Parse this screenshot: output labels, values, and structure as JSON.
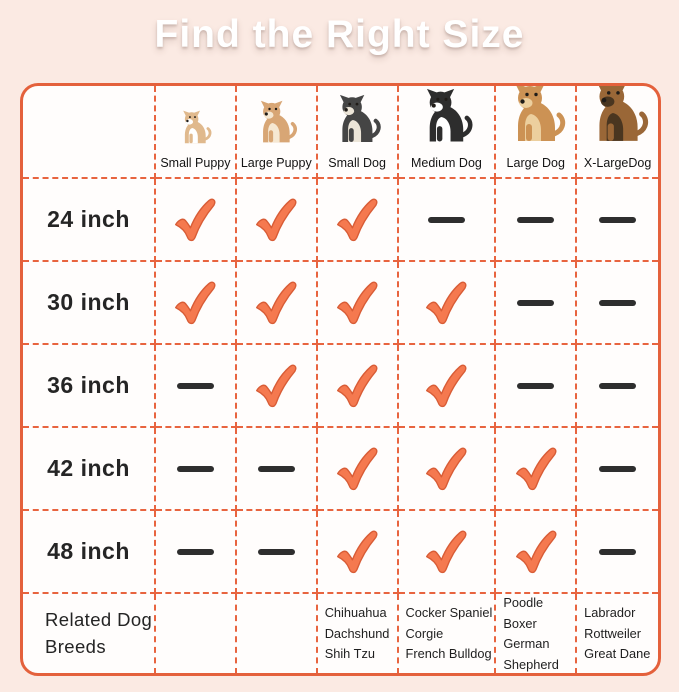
{
  "page_title": "Find the Right Size",
  "colors": {
    "background": "#fbeae3",
    "board_background": "#fffdfc",
    "grid_orange": "#e4613c",
    "check_fill": "#f5794f",
    "check_outline": "#d85c36",
    "dash_bar": "#2e2e2e",
    "title_text": "#ffffff",
    "body_text": "#1f1f1f"
  },
  "columns": [
    {
      "label": "Small Puppy",
      "dog": "corgi-puppy",
      "body_color": "#e0b98d",
      "accent_color": "#ffffff",
      "size": 36
    },
    {
      "label": "Large Puppy",
      "dog": "chihuahua-puppy",
      "body_color": "#d8a675",
      "accent_color": "#f6e8d2",
      "size": 46
    },
    {
      "label": "Small Dog",
      "dog": "french-bulldog",
      "body_color": "#454545",
      "accent_color": "#ece5d8",
      "size": 52
    },
    {
      "label": "Medium Dog",
      "dog": "border-collie",
      "body_color": "#2d2d2d",
      "accent_color": "#ffffff",
      "size": 58
    },
    {
      "label": "Large Dog",
      "dog": "golden-retriever",
      "body_color": "#cc9254",
      "accent_color": "#eccf9e",
      "size": 64
    },
    {
      "label": "X-LargeDog",
      "dog": "german-shepherd",
      "body_color": "#9a6737",
      "accent_color": "#4a3620",
      "size": 66
    }
  ],
  "rows": [
    {
      "label": "24 inch",
      "cells": [
        "check",
        "check",
        "check",
        "dash",
        "dash",
        "dash"
      ]
    },
    {
      "label": "30 inch",
      "cells": [
        "check",
        "check",
        "check",
        "check",
        "dash",
        "dash"
      ]
    },
    {
      "label": "36 inch",
      "cells": [
        "dash",
        "check",
        "check",
        "check",
        "dash",
        "dash"
      ]
    },
    {
      "label": "42 inch",
      "cells": [
        "dash",
        "dash",
        "check",
        "check",
        "check",
        "dash"
      ]
    },
    {
      "label": "48 inch",
      "cells": [
        "dash",
        "dash",
        "check",
        "check",
        "check",
        "dash"
      ]
    }
  ],
  "breeds_row": {
    "label": "Related Dog Breeds",
    "lists": [
      [],
      [],
      [
        "Chihuahua",
        "Dachshund",
        "Shih Tzu"
      ],
      [
        "Cocker Spaniel",
        "Corgie",
        "French Bulldog"
      ],
      [
        "Poodle",
        "Boxer",
        "German",
        "Shepherd"
      ],
      [
        "Labrador",
        "Rottweiler",
        "Great Dane"
      ]
    ]
  },
  "chart_data": {
    "type": "table",
    "title": "Find the Right Size",
    "column_headers": [
      "Small Puppy",
      "Large Puppy",
      "Small Dog",
      "Medium Dog",
      "Large Dog",
      "X-LargeDog"
    ],
    "row_headers": [
      "24 inch",
      "30 inch",
      "36 inch",
      "42 inch",
      "48 inch"
    ],
    "matrix": [
      [
        true,
        true,
        true,
        false,
        false,
        false
      ],
      [
        true,
        true,
        true,
        true,
        false,
        false
      ],
      [
        false,
        true,
        true,
        true,
        false,
        false
      ],
      [
        false,
        false,
        true,
        true,
        true,
        false
      ],
      [
        false,
        false,
        true,
        true,
        true,
        false
      ]
    ],
    "legend": {
      "true": "check (fits)",
      "false": "dash (not recommended)"
    },
    "related_breeds": {
      "Small Dog": [
        "Chihuahua",
        "Dachshund",
        "Shih Tzu"
      ],
      "Medium Dog": [
        "Cocker Spaniel",
        "Corgie",
        "French Bulldog"
      ],
      "Large Dog": [
        "Poodle",
        "Boxer",
        "German Shepherd"
      ],
      "X-LargeDog": [
        "Labrador",
        "Rottweiler",
        "Great Dane"
      ]
    }
  }
}
